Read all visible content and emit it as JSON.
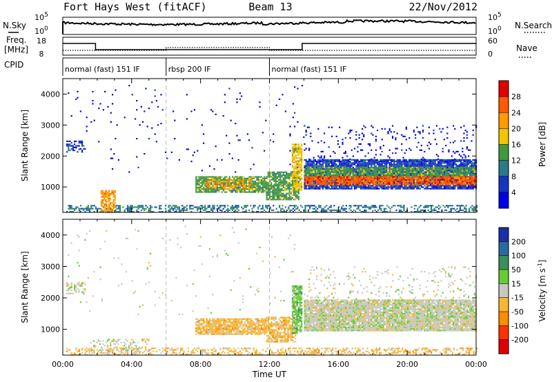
{
  "header": {
    "station": "Fort Hays West (fitACF)",
    "beam": "Beam 13",
    "date": "22/Nov/2012"
  },
  "top_panels": {
    "nsky_label": "N.Sky",
    "nsky_ticks": [
      "10^5",
      "10^0"
    ],
    "nsearch_ticks": [
      "10^5",
      "10^0"
    ],
    "nsearch_label": "N.Search",
    "freq_label_1": "Freq.",
    "freq_label_2": "[MHz]",
    "freq_ticks": [
      "18",
      "8"
    ],
    "nave_ticks": [
      "60",
      "0"
    ],
    "nave_label": "Nave",
    "cpid_label": "CPID",
    "cpid_segments": [
      {
        "label": "normal (fast) 151 IF",
        "start_h": 0,
        "end_h": 6
      },
      {
        "label": "rbsp 200 IF",
        "start_h": 6,
        "end_h": 12
      },
      {
        "label": "normal (fast) 151 IF",
        "start_h": 12,
        "end_h": 24
      }
    ]
  },
  "chart_data": [
    {
      "type": "heatmap",
      "name": "power",
      "ylabel": "Slant Range [km]",
      "yticks": [
        1000,
        2000,
        3000,
        4000
      ],
      "ylim": [
        180,
        4500
      ],
      "xlim_hours": [
        0,
        24
      ],
      "colorbar_label": "Power [dB]",
      "colorbar_ticks": [
        "28",
        "24",
        "20",
        "16",
        "12",
        "8",
        "4"
      ],
      "colorbar_colors": [
        "#e00000",
        "#ff5a00",
        "#ff9a00",
        "#f5c400",
        "#3f9a3f",
        "#2a7a8a",
        "#1535c0",
        "#0000e8"
      ],
      "scatter_regions": [
        {
          "t0": 0.2,
          "t1": 1.3,
          "r0": 2150,
          "r1": 2500,
          "level": 1,
          "density": 0.35
        },
        {
          "t0": 0.2,
          "t1": 24,
          "r0": 180,
          "r1": 420,
          "level": 2,
          "density": 0.45
        },
        {
          "t0": 2.2,
          "t1": 3.0,
          "r0": 180,
          "r1": 900,
          "level": 5,
          "density": 0.7
        },
        {
          "t0": 7.7,
          "t1": 11.8,
          "r0": 850,
          "r1": 1350,
          "level": 3,
          "density": 0.85
        },
        {
          "t0": 8.3,
          "t1": 11.0,
          "r0": 950,
          "r1": 1250,
          "level": 5,
          "density": 0.5
        },
        {
          "t0": 11.8,
          "t1": 13.7,
          "r0": 600,
          "r1": 1500,
          "level": 3,
          "density": 0.8
        },
        {
          "t0": 13.3,
          "t1": 13.9,
          "r0": 900,
          "r1": 2400,
          "level": 4,
          "density": 0.8
        },
        {
          "t0": 14.0,
          "t1": 24,
          "r0": 950,
          "r1": 1900,
          "level": 1,
          "density": 0.9
        },
        {
          "t0": 14.0,
          "t1": 24,
          "r0": 1300,
          "r1": 1650,
          "level": 3,
          "density": 0.85
        },
        {
          "t0": 14.0,
          "t1": 24,
          "r0": 1100,
          "r1": 1350,
          "level": 6,
          "density": 0.9
        },
        {
          "t0": 14.0,
          "t1": 24,
          "r0": 1900,
          "r1": 3000,
          "level": 0,
          "density": 0.08
        },
        {
          "t0": 0.2,
          "t1": 14.0,
          "r0": 1500,
          "r1": 4300,
          "level": 0,
          "density": 0.015
        }
      ]
    },
    {
      "type": "heatmap",
      "name": "velocity",
      "ylabel": "Slant Range [km]",
      "yticks": [
        1000,
        2000,
        3000,
        4000
      ],
      "ylim": [
        180,
        4500
      ],
      "xlabel": "Time UT",
      "xticks": [
        "00:00",
        "04:00",
        "08:00",
        "12:00",
        "16:00",
        "20:00",
        "00:00"
      ],
      "xtick_hours": [
        0,
        4,
        8,
        12,
        16,
        20,
        24
      ],
      "colorbar_label": "Velocity [m s",
      "colorbar_unit_sup": "-1",
      "colorbar_ticks": [
        "200",
        "100",
        "50",
        "15",
        "-15",
        "-50",
        "-100",
        "-200"
      ],
      "colorbar_colors": [
        "#1a2fa8",
        "#2a6aa0",
        "#3b8f5a",
        "#66cc33",
        "#c8c8c0",
        "#f7b733",
        "#ff8c00",
        "#ff3300",
        "#e00000"
      ],
      "scatter_regions": [
        {
          "t0": 0.2,
          "t1": 1.3,
          "r0": 2150,
          "r1": 2500,
          "level": 4,
          "density": 0.35
        },
        {
          "t0": 0.2,
          "t1": 24,
          "r0": 180,
          "r1": 420,
          "level": 5,
          "density": 0.4
        },
        {
          "t0": 1.5,
          "t1": 5.0,
          "r0": 180,
          "r1": 700,
          "level": 4,
          "density": 0.3
        },
        {
          "t0": 7.7,
          "t1": 11.8,
          "r0": 850,
          "r1": 1350,
          "level": 5,
          "density": 0.85
        },
        {
          "t0": 11.8,
          "t1": 13.5,
          "r0": 600,
          "r1": 1400,
          "level": 5,
          "density": 0.7
        },
        {
          "t0": 13.3,
          "t1": 13.9,
          "r0": 900,
          "r1": 2400,
          "level": 3,
          "density": 0.85
        },
        {
          "t0": 14.0,
          "t1": 24,
          "r0": 950,
          "r1": 1950,
          "level": 4,
          "density": 0.95
        },
        {
          "t0": 14.0,
          "t1": 24,
          "r0": 1950,
          "r1": 3000,
          "level": 4,
          "density": 0.08
        },
        {
          "t0": 0.2,
          "t1": 14.0,
          "r0": 1500,
          "r1": 4300,
          "level": 4,
          "density": 0.012
        }
      ]
    }
  ]
}
